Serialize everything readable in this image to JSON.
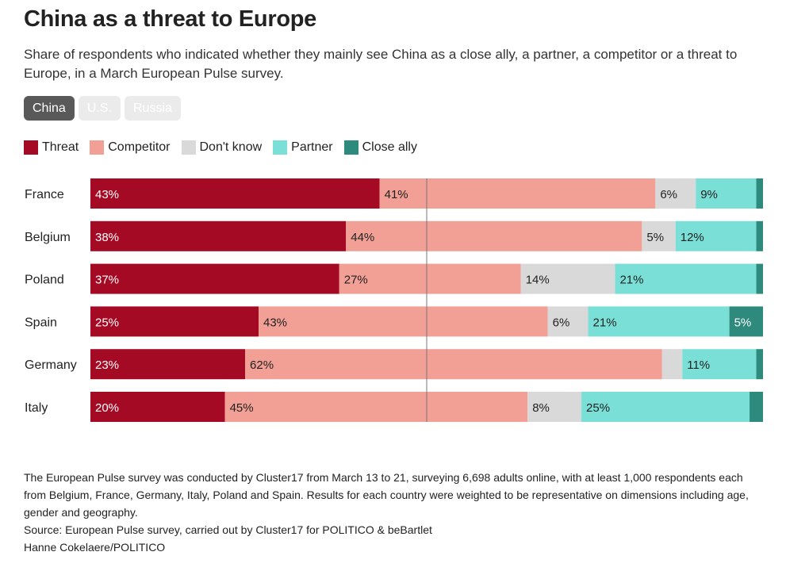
{
  "header": {
    "title": "China as a threat to Europe",
    "subtitle": "Share of respondents who indicated whether they mainly see China as a close ally, a partner, a competitor or a threat to Europe, in a March European Pulse survey."
  },
  "tabs": [
    {
      "label": "China",
      "active": true
    },
    {
      "label": "U.S.",
      "active": false
    },
    {
      "label": "Russia",
      "active": false
    }
  ],
  "legend": [
    {
      "label": "Threat",
      "color": "#a50a24"
    },
    {
      "label": "Competitor",
      "color": "#f29f96"
    },
    {
      "label": "Don't know",
      "color": "#d9d9d9"
    },
    {
      "label": "Partner",
      "color": "#7ae0d7"
    },
    {
      "label": "Close ally",
      "color": "#2e8a7d"
    }
  ],
  "chart_data": {
    "type": "bar",
    "orientation": "horizontal",
    "stacked": true,
    "title": "China as a threat to Europe",
    "xlim": [
      0,
      100
    ],
    "reference_line": 50,
    "categories": [
      "France",
      "Belgium",
      "Poland",
      "Spain",
      "Germany",
      "Italy"
    ],
    "series": [
      {
        "name": "Threat",
        "color": "#a50a24",
        "label_color": "#ffffff",
        "values": [
          43,
          38,
          37,
          25,
          23,
          20
        ]
      },
      {
        "name": "Competitor",
        "color": "#f29f96",
        "label_color": "#222222",
        "values": [
          41,
          44,
          27,
          43,
          62,
          45
        ]
      },
      {
        "name": "Don't know",
        "color": "#d9d9d9",
        "label_color": "#222222",
        "values": [
          6,
          5,
          14,
          6,
          3,
          8
        ]
      },
      {
        "name": "Partner",
        "color": "#7ae0d7",
        "label_color": "#222222",
        "values": [
          9,
          12,
          21,
          21,
          11,
          25
        ]
      },
      {
        "name": "Close ally",
        "color": "#2e8a7d",
        "label_color": "#ffffff",
        "values": [
          1,
          1,
          1,
          5,
          1,
          2
        ]
      }
    ],
    "labels": [
      [
        "43%",
        "41%",
        "6%",
        "9%",
        ""
      ],
      [
        "38%",
        "44%",
        "5%",
        "12%",
        ""
      ],
      [
        "37%",
        "27%",
        "14%",
        "21%",
        ""
      ],
      [
        "25%",
        "43%",
        "6%",
        "21%",
        "5%"
      ],
      [
        "23%",
        "62%",
        "",
        "11%",
        ""
      ],
      [
        "20%",
        "45%",
        "8%",
        "25%",
        ""
      ]
    ]
  },
  "notes": {
    "methodology": "The European Pulse survey was conducted by Cluster17 from March 13 to 21, surveying 6,698 adults online, with at least 1,000 respondents each from Belgium, France, Germany, Italy, Poland and Spain. Results for each country were weighted to be representative on dimensions including age, gender and geography.",
    "source": "Source: European Pulse survey, carried out by Cluster17 for POLITICO & beBartlet",
    "credit": "Hanne Cokelaere/POLITICO"
  }
}
